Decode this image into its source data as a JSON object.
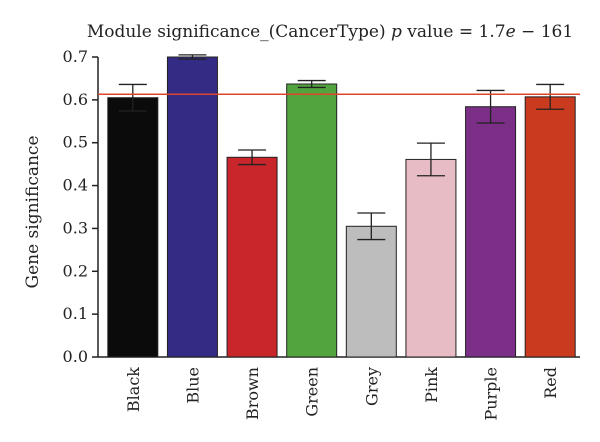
{
  "chart_data": {
    "type": "bar",
    "title": {
      "prefix": "Module significance_(CancerType) ",
      "p": "p",
      "middle": " value = 1.7",
      "e": "e",
      "suffix": " − 161"
    },
    "xlabel": "",
    "ylabel": "Gene significance",
    "ylim": [
      0,
      0.7
    ],
    "yticks": [
      0.0,
      0.1,
      0.2,
      0.3,
      0.4,
      0.5,
      0.6,
      0.7
    ],
    "ytick_labels": [
      "0.0",
      "0.1",
      "0.2",
      "0.3",
      "0.4",
      "0.5",
      "0.6",
      "0.7"
    ],
    "categories": [
      "Black",
      "Blue",
      "Brown",
      "Green",
      "Grey",
      "Pink",
      "Purple",
      "Red"
    ],
    "values": [
      0.605,
      0.7,
      0.466,
      0.637,
      0.305,
      0.461,
      0.584,
      0.607
    ],
    "errors": [
      0.031,
      0.005,
      0.017,
      0.008,
      0.031,
      0.038,
      0.038,
      0.029
    ],
    "colors": [
      "#0b0b0b",
      "#342c84",
      "#c8262b",
      "#52a43f",
      "#bdbdbd",
      "#e8bcc4",
      "#7b2f86",
      "#c93a1e"
    ],
    "reference_line": {
      "value": 0.613,
      "color": "#e0452b"
    },
    "grid": false,
    "legend": "none"
  }
}
